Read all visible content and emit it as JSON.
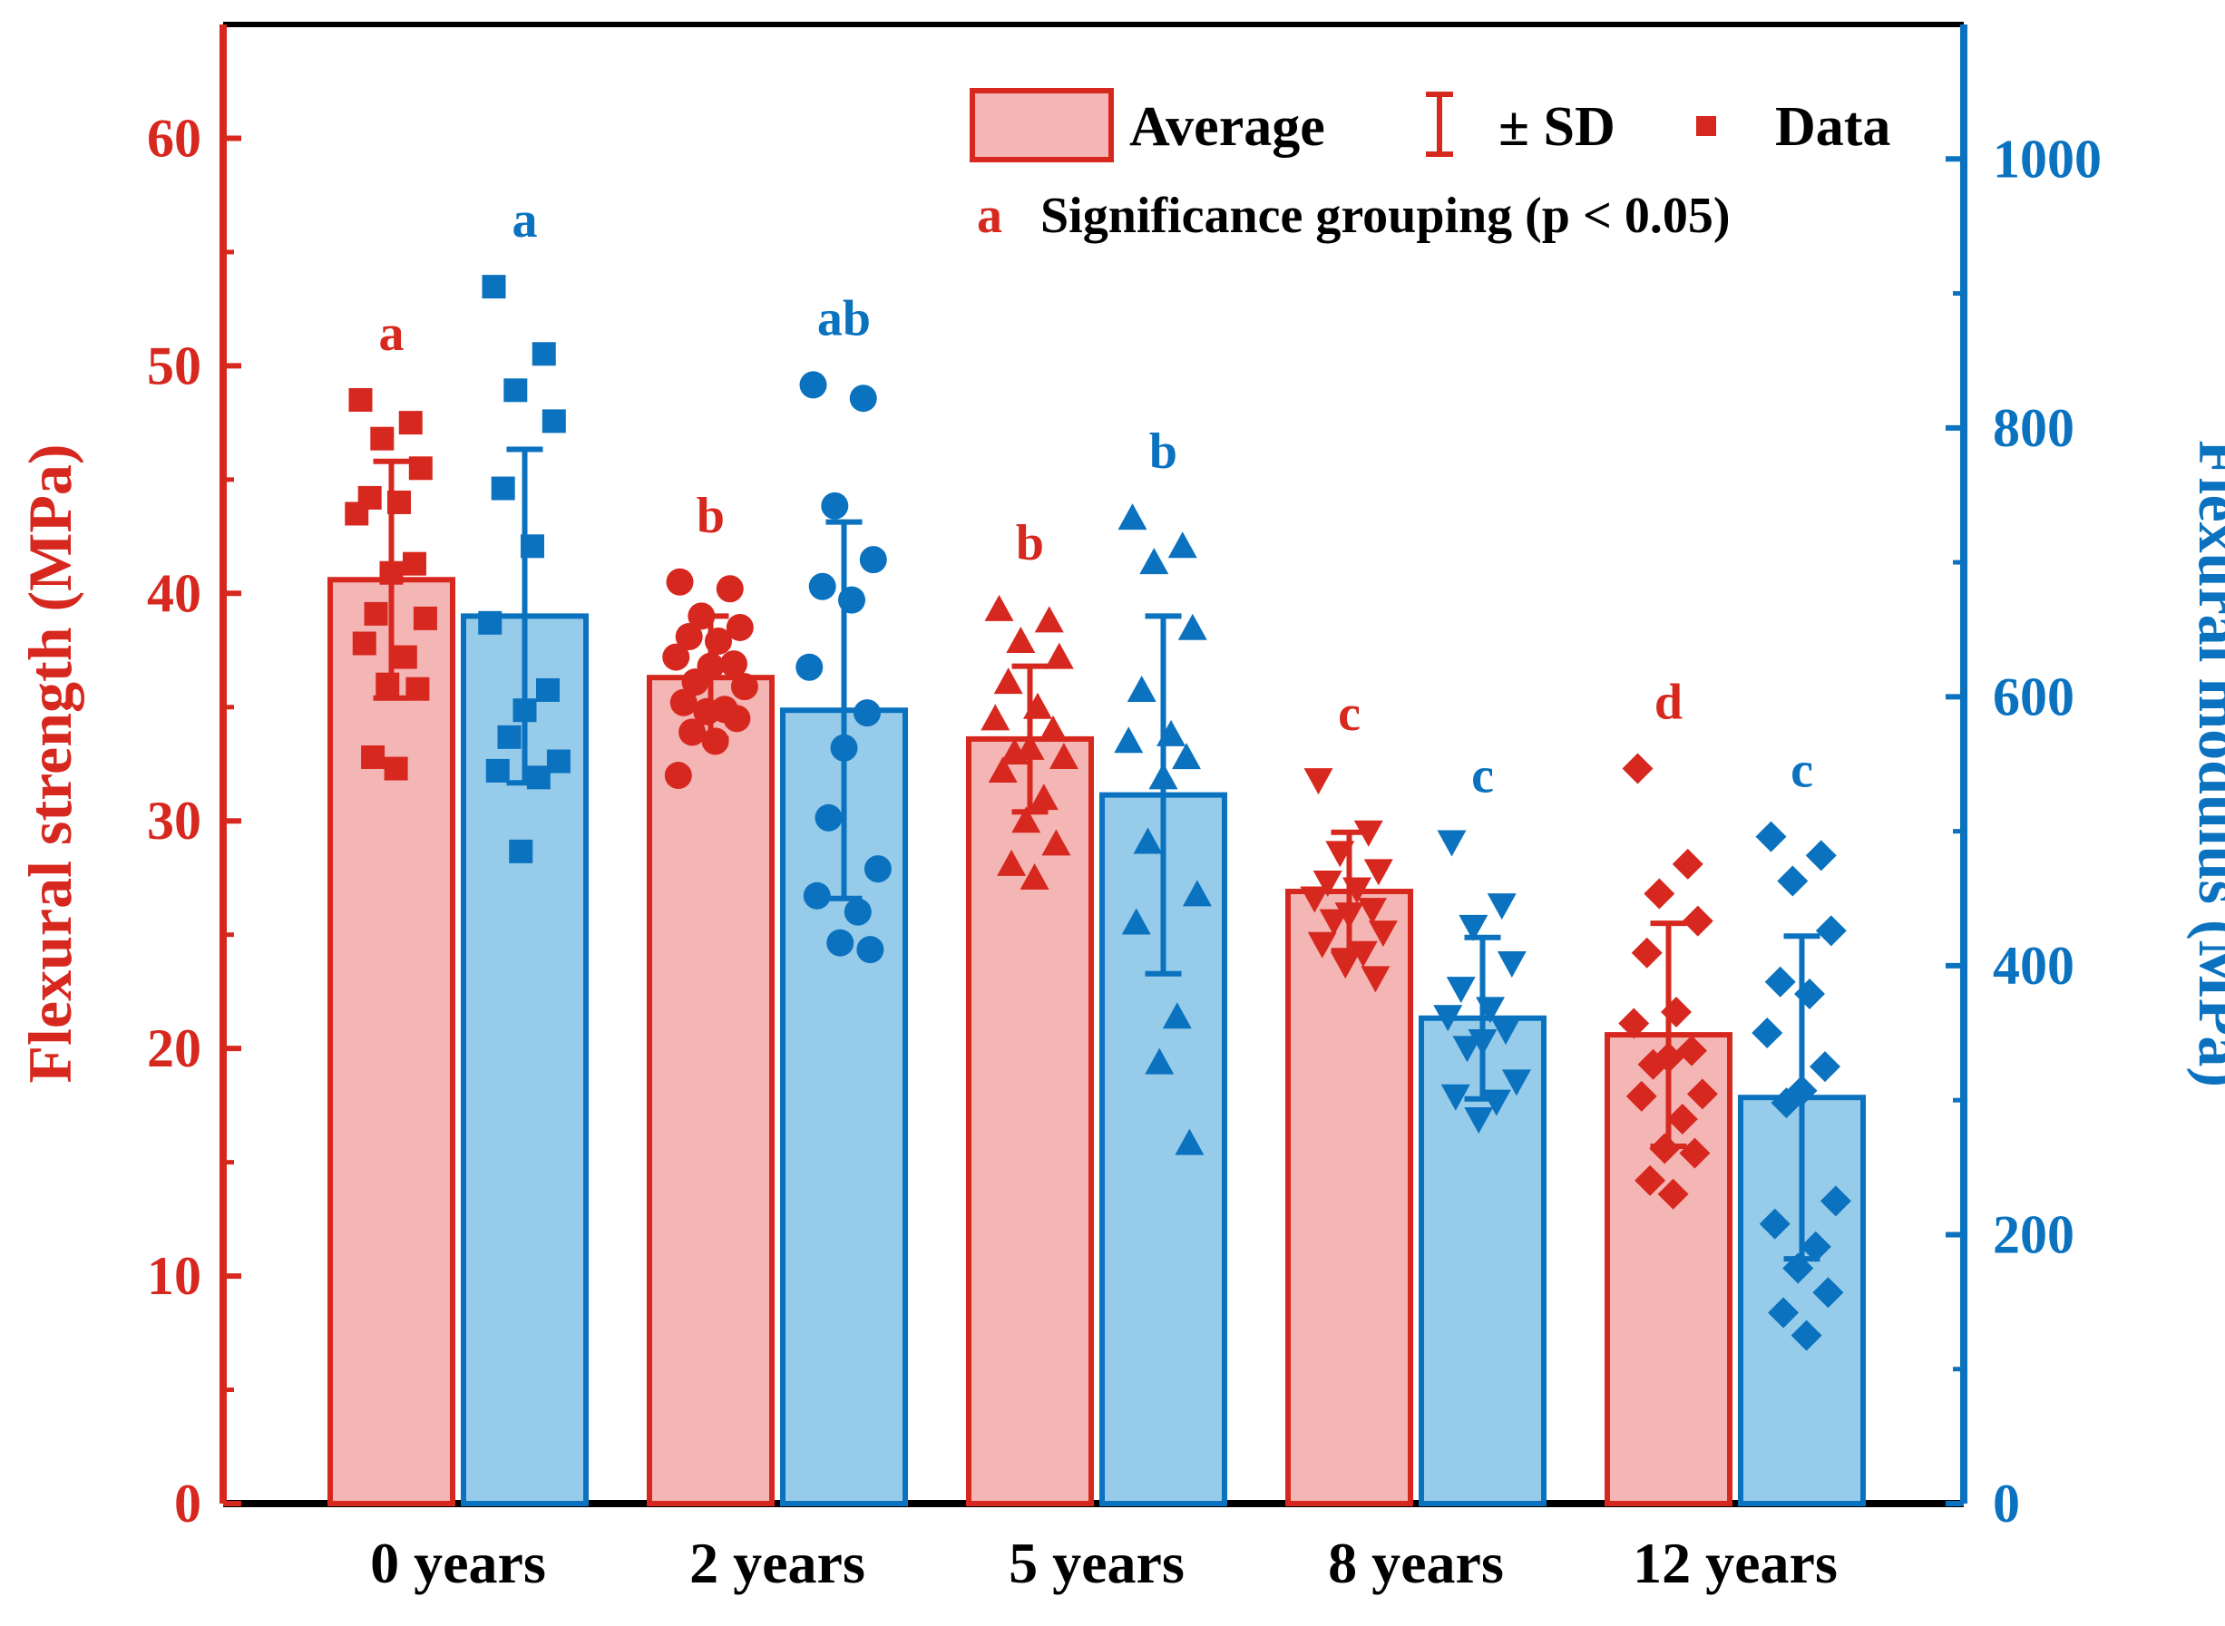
{
  "chart_data": {
    "type": "bar",
    "categories": [
      "0 years",
      "2 years",
      "5 years",
      "8 years",
      "12 years"
    ],
    "left_axis": {
      "label": "Flexural strength (MPa)",
      "ylim": [
        0,
        65
      ],
      "ticks": [
        0,
        10,
        20,
        30,
        40,
        50,
        60
      ],
      "color": "#d7281f"
    },
    "right_axis": {
      "label": "Flexural modulus (MPa)",
      "ylim": [
        0,
        1100
      ],
      "ticks": [
        0,
        200,
        400,
        600,
        800,
        1000
      ],
      "color": "#0a72bf"
    },
    "series": [
      {
        "name": "Flexural strength",
        "axis": "left",
        "fill": "#f4b6b4",
        "stroke": "#d7281f",
        "means": [
          40.6,
          36.3,
          33.6,
          26.9,
          20.6
        ],
        "sd": [
          5.2,
          2.7,
          3.2,
          2.6,
          4.9
        ],
        "significance": [
          "a",
          "b",
          "b",
          "c",
          "d"
        ],
        "markers": [
          "square",
          "circle",
          "triangle-up",
          "triangle-down",
          "diamond"
        ],
        "points": [
          [
            48.5,
            47.5,
            46.8,
            45.5,
            44.2,
            44.0,
            43.5,
            41.3,
            40.9,
            39.1,
            38.9,
            37.8,
            37.2,
            36.0,
            35.8,
            32.8,
            32.3
          ],
          [
            40.5,
            40.2,
            39.0,
            38.5,
            38.1,
            37.9,
            37.2,
            36.9,
            36.8,
            36.1,
            35.9,
            35.2,
            34.9,
            34.8,
            34.5,
            33.9,
            33.5,
            32.0
          ],
          [
            39.3,
            38.8,
            37.9,
            37.2,
            36.1,
            35.0,
            34.5,
            34.0,
            33.2,
            33.0,
            32.8,
            32.2,
            31.0,
            30.0,
            29.0,
            28.1,
            27.5
          ],
          [
            31.8,
            29.5,
            28.6,
            27.8,
            27.3,
            27.0,
            26.6,
            26.1,
            25.9,
            25.6,
            25.1,
            24.6,
            24.2,
            23.7,
            23.1
          ],
          [
            32.3,
            28.1,
            26.8,
            25.6,
            24.2,
            21.6,
            21.1,
            19.9,
            19.6,
            19.3,
            18.0,
            17.9,
            16.9,
            15.6,
            15.4,
            14.2,
            13.6
          ]
        ]
      },
      {
        "name": "Flexural modulus",
        "axis": "right",
        "fill": "#96cbea",
        "stroke": "#0a72bf",
        "means": [
          660,
          590,
          527,
          361,
          302
        ],
        "sd": [
          124,
          140,
          133,
          60,
          120
        ],
        "significance": [
          "a",
          "ab",
          "b",
          "c",
          "c"
        ],
        "markers": [
          "square",
          "circle",
          "triangle-up",
          "triangle-down",
          "diamond"
        ],
        "points": [
          [
            905,
            855,
            828,
            805,
            755,
            712,
            655,
            605,
            590,
            570,
            552,
            545,
            540,
            485
          ],
          [
            832,
            822,
            742,
            702,
            682,
            672,
            622,
            588,
            562,
            510,
            472,
            452,
            440,
            417,
            412
          ],
          [
            733,
            712,
            700,
            651,
            605,
            572,
            567,
            555,
            540,
            492,
            453,
            432,
            362,
            328,
            268
          ],
          [
            492,
            445,
            429,
            402,
            383,
            368,
            362,
            352,
            344,
            339,
            314,
            303,
            299,
            286
          ],
          [
            496,
            482,
            463,
            426,
            388,
            379,
            350,
            325,
            307,
            298,
            225,
            208,
            191,
            175,
            157,
            142,
            125
          ]
        ]
      }
    ],
    "legend": {
      "average_label": "Average",
      "sd_label": "± SD",
      "data_label": "Data",
      "sig_letter": "a",
      "sig_label": "Significance grouping (p < 0.05)",
      "position": "top-right"
    }
  }
}
